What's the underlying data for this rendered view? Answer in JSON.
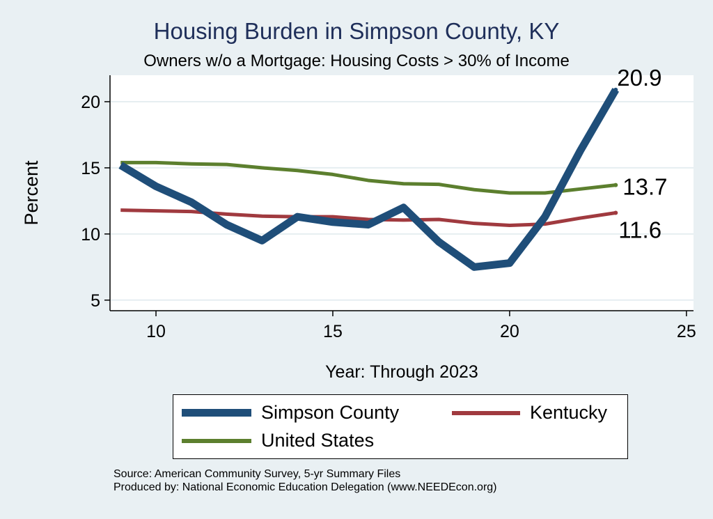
{
  "chart_data": {
    "type": "line",
    "title": "Housing Burden in Simpson County, KY",
    "subtitle": "Owners w/o a Mortgage: Housing Costs > 30% of Income",
    "xlabel": "Year: Through 2023",
    "ylabel": "Percent",
    "xlim": [
      8.7,
      25.2
    ],
    "ylim": [
      4.2,
      22
    ],
    "xticks": [
      10,
      15,
      20,
      25
    ],
    "yticks": [
      5,
      10,
      15,
      20
    ],
    "grid": true,
    "legend_position": "bottom",
    "series": [
      {
        "name": "Simpson County",
        "color": "#1f4e79",
        "x": [
          9,
          10,
          11,
          12,
          13,
          14,
          15,
          16,
          17,
          18,
          19,
          20,
          21,
          22,
          23
        ],
        "values": [
          15.2,
          13.6,
          12.4,
          10.7,
          9.5,
          11.3,
          10.9,
          10.7,
          12.0,
          9.4,
          7.5,
          7.8,
          11.3,
          16.3,
          20.9
        ],
        "end_label": "20.9"
      },
      {
        "name": "Kentucky",
        "color": "#a03a3f",
        "x": [
          9,
          10,
          11,
          12,
          13,
          14,
          15,
          16,
          17,
          18,
          19,
          20,
          21,
          22,
          23
        ],
        "values": [
          11.8,
          11.75,
          11.7,
          11.5,
          11.35,
          11.3,
          11.3,
          11.1,
          11.05,
          11.1,
          10.8,
          10.65,
          10.75,
          11.2,
          11.6
        ],
        "end_label": "11.6"
      },
      {
        "name": "United States",
        "color": "#5c7f2e",
        "x": [
          9,
          10,
          11,
          12,
          13,
          14,
          15,
          16,
          17,
          18,
          19,
          20,
          21,
          22,
          23
        ],
        "values": [
          15.4,
          15.4,
          15.3,
          15.25,
          15.0,
          14.8,
          14.5,
          14.05,
          13.8,
          13.75,
          13.35,
          13.1,
          13.1,
          13.4,
          13.7
        ],
        "end_label": "13.7"
      }
    ],
    "source_lines": [
      "Source: American Community Survey, 5-yr Summary Files",
      "Produced by: National Economic Education Delegation (www.NEEDEcon.org)"
    ]
  }
}
